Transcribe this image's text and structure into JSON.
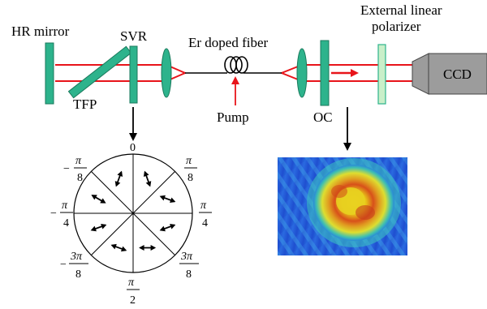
{
  "labels": {
    "hr_mirror": "HR mirror",
    "tfp": "TFP",
    "svr": "SVR",
    "fiber": "Er doped fiber",
    "pump": "Pump",
    "oc": "OC",
    "polarizer_line1": "External linear",
    "polarizer_line2": "polarizer",
    "ccd": "CCD"
  },
  "wheel": {
    "top": "0",
    "right_upper": {
      "num": "π",
      "den": "8"
    },
    "right_mid": {
      "num": "π",
      "den": "4"
    },
    "right_lower": {
      "num": "3π",
      "den": "8"
    },
    "bottom": {
      "num": "π",
      "den": "2"
    },
    "left_upper": {
      "sign": "−",
      "num": "π",
      "den": "8"
    },
    "left_mid": {
      "sign": "−",
      "num": "π",
      "den": "4"
    },
    "left_lower": {
      "sign": "−",
      "num": "3π",
      "den": "8"
    }
  },
  "colors": {
    "beam": "#e8141a",
    "optic": "#2db38c",
    "optic_stroke": "#1a7a5c",
    "polarizer": "#c9efc9",
    "ccd_body": "#9c9c9c",
    "pump_arrow": "#e8141a"
  },
  "icons": {
    "fiber_coil": "fiber-coil-icon",
    "ccd_camera": "camera-icon",
    "beam_profile": "beam-profile-image"
  }
}
